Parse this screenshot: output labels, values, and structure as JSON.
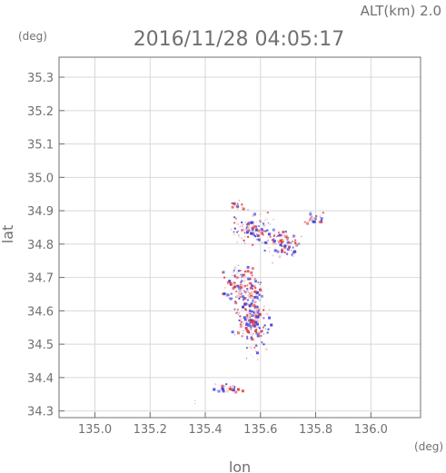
{
  "header": {
    "alt_label": "ALT(km) 2.0",
    "timestamp": "2016/11/28 04:05:17"
  },
  "chart_data": {
    "type": "heatmap",
    "xlabel": "lon",
    "ylabel": "lat",
    "xunit": "(deg)",
    "yunit": "(deg)",
    "xlim": [
      134.87,
      136.18
    ],
    "ylim": [
      34.28,
      35.36
    ],
    "xticks": [
      "135.0",
      "135.2",
      "135.4",
      "135.6",
      "135.8",
      "136.0"
    ],
    "yticks": [
      "34.3",
      "34.4",
      "34.5",
      "34.6",
      "34.7",
      "34.8",
      "34.9",
      "35.0",
      "35.1",
      "35.2",
      "35.3"
    ],
    "grid": true,
    "colors": {
      "positive": "#e04040",
      "negative": "#4040e0",
      "neutral": "#f0c8c8"
    },
    "clusters": [
      {
        "lon": 135.57,
        "lat": 34.58,
        "spread_lon": 0.05,
        "spread_lat": 0.09,
        "count": 260
      },
      {
        "lon": 135.52,
        "lat": 34.68,
        "spread_lon": 0.06,
        "spread_lat": 0.05,
        "count": 110
      },
      {
        "lon": 135.57,
        "lat": 34.85,
        "spread_lon": 0.07,
        "spread_lat": 0.04,
        "count": 130
      },
      {
        "lon": 135.68,
        "lat": 34.8,
        "spread_lon": 0.05,
        "spread_lat": 0.04,
        "count": 90
      },
      {
        "lon": 135.51,
        "lat": 34.92,
        "spread_lon": 0.02,
        "spread_lat": 0.01,
        "count": 18
      },
      {
        "lon": 135.8,
        "lat": 34.88,
        "spread_lon": 0.04,
        "spread_lat": 0.02,
        "count": 25
      },
      {
        "lon": 135.48,
        "lat": 34.37,
        "spread_lon": 0.05,
        "spread_lat": 0.01,
        "count": 30
      },
      {
        "lon": 135.36,
        "lat": 34.33,
        "spread_lon": 0.005,
        "spread_lat": 0.005,
        "count": 2
      }
    ]
  }
}
